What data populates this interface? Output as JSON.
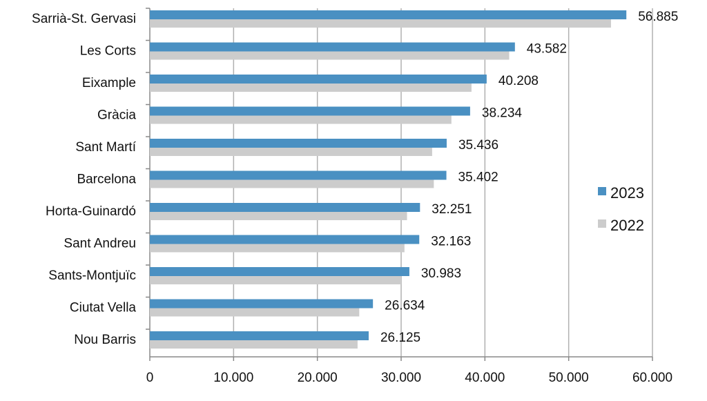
{
  "chart_data": {
    "type": "bar",
    "orientation": "horizontal",
    "categories": [
      "Sarrià-St. Gervasi",
      "Les Corts",
      "Eixample",
      "Gràcia",
      "Sant Martí",
      "Barcelona",
      "Horta-Guinardó",
      "Sant Andreu",
      "Sants-Montjuïc",
      "Ciutat Vella",
      "Nou Barris"
    ],
    "series": [
      {
        "name": "2023",
        "color": "#4a90c2",
        "values": [
          56885,
          43582,
          40208,
          38234,
          35436,
          35402,
          32251,
          32163,
          30983,
          26634,
          26125
        ],
        "labels": [
          "56.885",
          "43.582",
          "40.208",
          "38.234",
          "35.436",
          "35.402",
          "32.251",
          "32.163",
          "30.983",
          "26.634",
          "26.125"
        ]
      },
      {
        "name": "2022",
        "color": "#cccccc",
        "values": [
          55050,
          42900,
          38400,
          36000,
          33700,
          33900,
          30700,
          30400,
          30000,
          25000,
          24800
        ]
      }
    ],
    "xlim": [
      0,
      60000
    ],
    "xticks": [
      "0",
      "10.000",
      "20.000",
      "30.000",
      "40.000",
      "50.000",
      "60.000"
    ],
    "grid": "vertical",
    "legend_position": "right"
  }
}
